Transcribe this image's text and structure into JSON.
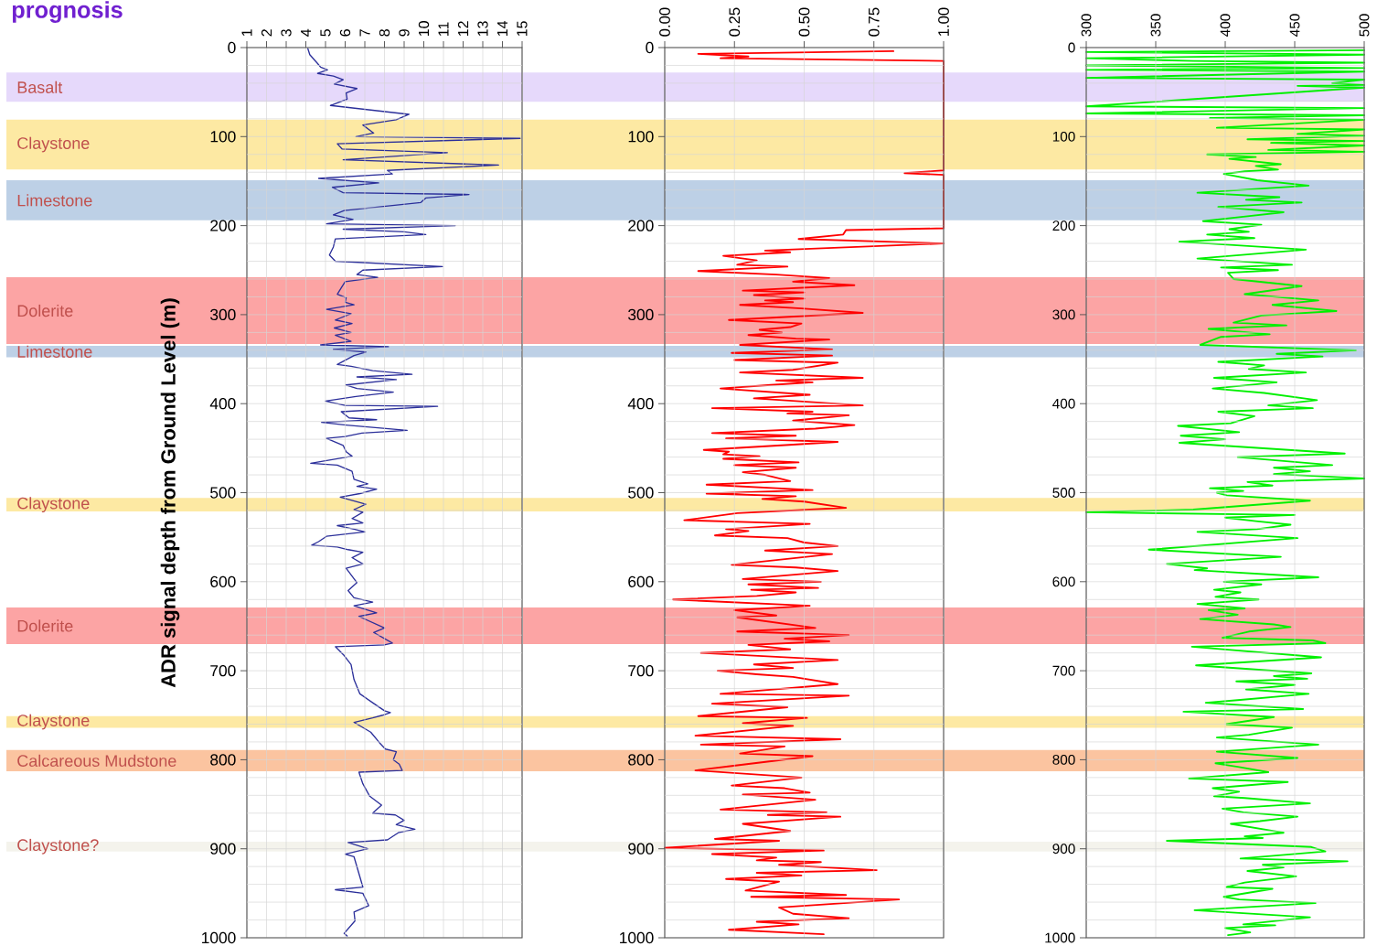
{
  "chart_data": [
    {
      "type": "line",
      "title": "prognosis",
      "ylabel": "ADR signal depth from Ground Level (m)",
      "grid": true,
      "xlim": [
        1,
        15
      ],
      "xticks": [
        1,
        2,
        3,
        4,
        5,
        6,
        7,
        8,
        9,
        10,
        11,
        12,
        13,
        14,
        15
      ],
      "ylim": [
        1000,
        0
      ],
      "yticks": [
        0,
        {
          "value": 20,
          "label": null
        },
        {
          "value": 40,
          "label": null
        },
        {
          "value": 60,
          "label": null
        },
        {
          "value": 80,
          "label": null
        },
        100,
        {
          "value": 120,
          "label": null
        },
        {
          "value": 140,
          "label": null
        },
        {
          "value": 160,
          "label": null
        },
        {
          "value": 180,
          "label": null
        },
        200,
        {
          "value": 220,
          "label": null
        },
        {
          "value": 240,
          "label": null
        },
        {
          "value": 260,
          "label": null
        },
        {
          "value": 280,
          "label": null
        },
        300,
        {
          "value": 320,
          "label": null
        },
        {
          "value": 340,
          "label": null
        },
        {
          "value": 360,
          "label": null
        },
        {
          "value": 380,
          "label": null
        },
        400,
        {
          "value": 420,
          "label": null
        },
        {
          "value": 440,
          "label": null
        },
        {
          "value": 460,
          "label": null
        },
        {
          "value": 480,
          "label": null
        },
        500,
        {
          "value": 520,
          "label": null
        },
        {
          "value": 540,
          "label": null
        },
        {
          "value": 560,
          "label": null
        },
        {
          "value": 580,
          "label": null
        },
        600,
        {
          "value": 620,
          "label": null
        },
        {
          "value": 640,
          "label": null
        },
        {
          "value": 660,
          "label": null
        },
        {
          "value": 680,
          "label": null
        },
        700,
        {
          "value": 720,
          "label": null
        },
        {
          "value": 740,
          "label": null
        },
        {
          "value": 760,
          "label": null
        },
        {
          "value": 780,
          "label": null
        },
        800,
        {
          "value": 820,
          "label": null
        },
        {
          "value": 840,
          "label": null
        },
        {
          "value": 860,
          "label": null
        },
        {
          "value": 880,
          "label": null
        },
        900,
        {
          "value": 920,
          "label": null
        },
        {
          "value": 940,
          "label": null
        },
        {
          "value": 960,
          "label": null
        },
        {
          "value": 980,
          "label": null
        },
        1000
      ],
      "bands": [
        {
          "axis": "y",
          "from": 28,
          "to": 61,
          "label": "Basalt",
          "color": "#e6d9fb"
        },
        {
          "axis": "y",
          "from": 81,
          "to": 137,
          "label": "Claystone",
          "color": "#fde9a3"
        },
        {
          "axis": "y",
          "from": 149,
          "to": 194,
          "label": "Limestone",
          "color": "#bdd0e6"
        },
        {
          "axis": "y",
          "from": 258,
          "to": 333,
          "label": "Dolerite",
          "color": "#fca4a4"
        },
        {
          "axis": "y",
          "from": 335,
          "to": 348,
          "label": "Limestone",
          "color": "#bdd0e6"
        },
        {
          "axis": "y",
          "from": 506,
          "to": 521,
          "label": "Claystone",
          "color": "#fde9a3"
        },
        {
          "axis": "y",
          "from": 629,
          "to": 670,
          "label": "Dolerite",
          "color": "#fca4a4"
        },
        {
          "axis": "y",
          "from": 751,
          "to": 764,
          "label": "Claystone",
          "color": "#fde9a3"
        },
        {
          "axis": "y",
          "from": 789,
          "to": 813,
          "label": "Calcareous Mudstone",
          "color": "#fbc4a0"
        },
        {
          "axis": "y",
          "from": 892,
          "to": 903,
          "label": "Claystone?",
          "color": "#f4f3ec"
        }
      ],
      "series": [
        {
          "color": "#2b2f9a",
          "x": [
            4.1,
            4.2,
            4.6,
            4.75,
            5.1,
            4.6,
            5.4,
            5.9,
            5.45,
            6.6,
            6.05,
            6.1,
            5.25,
            9.25,
            8.6,
            6.9,
            7.45,
            6.55,
            14.9,
            5.6,
            5.85,
            11.2,
            5.9,
            13.8,
            8.15,
            8.4,
            4.65,
            7.7,
            5.35,
            5.9,
            12.3,
            10.1,
            9.85,
            5.95,
            5.4,
            6.4,
            5.05,
            11.6,
            5.9,
            9.0,
            10.1,
            5.5,
            5.4,
            5.2,
            5.5,
            10.95,
            6.9,
            6.6,
            7.65,
            6.0,
            5.8,
            5.6,
            6.05,
            6.0,
            6.45,
            5.05,
            6.3,
            5.5,
            6.35,
            5.45,
            6.3,
            5.5,
            6.3,
            4.75,
            8.2,
            5.4,
            7.05,
            6.45,
            5.6,
            6.3,
            7.4,
            9.4,
            6.6,
            8.6,
            6.05,
            6.6,
            8.45,
            6.55,
            5.0,
            6.0,
            10.7,
            5.8,
            6.2,
            7.6,
            4.8,
            6.05,
            9.15,
            6.85,
            6.0,
            5.05,
            5.9,
            6.05,
            6.35,
            4.25,
            5.6,
            6.35,
            6.45,
            7.15,
            6.6,
            7.6,
            6.75,
            5.75,
            7.05,
            6.45,
            6.9,
            6.35,
            6.9,
            5.6,
            6.45,
            7.0,
            5.05,
            4.65,
            4.3,
            5.6,
            6.15,
            6.9,
            6.35,
            6.9,
            6.05,
            6.6,
            6.15,
            6.45,
            7.4,
            6.45,
            7.6,
            6.7,
            8.0,
            7.45,
            8.4,
            8.0,
            5.5,
            5.95,
            6.3,
            6.45,
            6.75,
            7.4,
            8.0,
            8.3,
            7.9,
            7.4,
            6.45,
            7.3,
            7.75,
            8.05,
            8.6,
            8.45,
            8.75,
            8.9,
            6.7,
            6.9,
            7.25,
            7.85,
            7.4,
            8.55,
            9.0,
            8.6,
            9.55,
            8.7,
            8.15,
            6.15,
            7.15,
            6.0,
            6.45,
            6.9,
            5.5,
            6.9,
            7.2,
            6.45,
            6.5,
            5.95,
            6.1
          ],
          "values": [
            1,
            8,
            18,
            22,
            25,
            29,
            32,
            36,
            41,
            46,
            51,
            58,
            65,
            75,
            81,
            87,
            96,
            100,
            102,
            108,
            114,
            118,
            126,
            132,
            138,
            142,
            147,
            152,
            157,
            163,
            165,
            169,
            174,
            183,
            188,
            193,
            198,
            200,
            204,
            207,
            210,
            215,
            224,
            233,
            240,
            246,
            250,
            255,
            258,
            263,
            270,
            277,
            281,
            286,
            289,
            294,
            299,
            306,
            310,
            315,
            320,
            323,
            330,
            334,
            336,
            339,
            342,
            346,
            356,
            358,
            363,
            367,
            370,
            373,
            379,
            383,
            387,
            392,
            397,
            402,
            403,
            409,
            416,
            418,
            421,
            424,
            430,
            433,
            437,
            439,
            447,
            454,
            459,
            467,
            469,
            476,
            485,
            490,
            493,
            496,
            501,
            505,
            513,
            519,
            522,
            529,
            534,
            537,
            541,
            544,
            549,
            555,
            559,
            561,
            564,
            567,
            573,
            580,
            585,
            601,
            610,
            618,
            623,
            627,
            635,
            639,
            652,
            657,
            669,
            671,
            673,
            683,
            693,
            710,
            726,
            736,
            745,
            747,
            750,
            753,
            758,
            769,
            781,
            788,
            791,
            800,
            805,
            812,
            814,
            827,
            841,
            851,
            860,
            862,
            868,
            873,
            878,
            882,
            890,
            893,
            900,
            906,
            909,
            943,
            946,
            950,
            964,
            971,
            981,
            995,
            998
          ]
        }
      ]
    },
    {
      "type": "line",
      "grid": true,
      "xlim": [
        0,
        1
      ],
      "xticks": [
        {
          "value": 0,
          "label": "0.00"
        },
        {
          "value": 0.25,
          "label": "0.25"
        },
        {
          "value": 0.5,
          "label": "0.50"
        },
        {
          "value": 0.75,
          "label": "0.75"
        },
        {
          "value": 1,
          "label": "1.00"
        }
      ],
      "ylim": [
        1000,
        0
      ],
      "yticks": [
        0,
        {
          "value": 20,
          "label": null
        },
        {
          "value": 40,
          "label": null
        },
        {
          "value": 60,
          "label": null
        },
        {
          "value": 80,
          "label": null
        },
        100,
        {
          "value": 120,
          "label": null
        },
        {
          "value": 140,
          "label": null
        },
        {
          "value": 160,
          "label": null
        },
        {
          "value": 180,
          "label": null
        },
        200,
        {
          "value": 220,
          "label": null
        },
        {
          "value": 240,
          "label": null
        },
        {
          "value": 260,
          "label": null
        },
        {
          "value": 280,
          "label": null
        },
        300,
        {
          "value": 320,
          "label": null
        },
        {
          "value": 340,
          "label": null
        },
        {
          "value": 360,
          "label": null
        },
        {
          "value": 380,
          "label": null
        },
        400,
        {
          "value": 420,
          "label": null
        },
        {
          "value": 440,
          "label": null
        },
        {
          "value": 460,
          "label": null
        },
        {
          "value": 480,
          "label": null
        },
        500,
        {
          "value": 520,
          "label": null
        },
        {
          "value": 540,
          "label": null
        },
        {
          "value": 560,
          "label": null
        },
        {
          "value": 580,
          "label": null
        },
        600,
        {
          "value": 620,
          "label": null
        },
        {
          "value": 640,
          "label": null
        },
        {
          "value": 660,
          "label": null
        },
        {
          "value": 680,
          "label": null
        },
        700,
        {
          "value": 720,
          "label": null
        },
        {
          "value": 740,
          "label": null
        },
        {
          "value": 760,
          "label": null
        },
        {
          "value": 780,
          "label": null
        },
        800,
        {
          "value": 820,
          "label": null
        },
        {
          "value": 840,
          "label": null
        },
        {
          "value": 860,
          "label": null
        },
        {
          "value": 880,
          "label": null
        },
        900,
        {
          "value": 920,
          "label": null
        },
        {
          "value": 940,
          "label": null
        },
        {
          "value": 960,
          "label": null
        },
        {
          "value": 980,
          "label": null
        },
        1000
      ],
      "bands": [
        {
          "axis": "y",
          "from": 28,
          "to": 61,
          "color": "#e6d9fb"
        },
        {
          "axis": "y",
          "from": 81,
          "to": 137,
          "color": "#fde9a3"
        },
        {
          "axis": "y",
          "from": 149,
          "to": 194,
          "color": "#bdd0e6"
        },
        {
          "axis": "y",
          "from": 258,
          "to": 333,
          "color": "#fca4a4"
        },
        {
          "axis": "y",
          "from": 335,
          "to": 348,
          "color": "#bdd0e6"
        },
        {
          "axis": "y",
          "from": 506,
          "to": 521,
          "color": "#fde9a3"
        },
        {
          "axis": "y",
          "from": 629,
          "to": 670,
          "color": "#fca4a4"
        },
        {
          "axis": "y",
          "from": 751,
          "to": 764,
          "color": "#fde9a3"
        },
        {
          "axis": "y",
          "from": 789,
          "to": 813,
          "color": "#fbc4a0"
        },
        {
          "axis": "y",
          "from": 892,
          "to": 903,
          "color": "#f4f3ec"
        }
      ],
      "series": [
        {
          "color": "#ff0000",
          "x": [
            0.82,
            0.12,
            0.3,
            0.2,
            1,
            1,
            0.86,
            1,
            1,
            0.65,
            0.64,
            0.48,
            1,
            0.36,
            0.45,
            0.21,
            0.33,
            0.26,
            0.44,
            0.12,
            0.4,
            0.5,
            0.59,
            0.46,
            0.68,
            0.28,
            0.5,
            0.32,
            0.5,
            0.36,
            0.46,
            0.27,
            0.49,
            0.71,
            0.23,
            0.49,
            0.45,
            0.34,
            0.42,
            0.3,
            0.47,
            0.59,
            0.27,
            0.6,
            0.24,
            0.6,
            0.25,
            0.62,
            0.46,
            0.27,
            0.71,
            0.4,
            0.53,
            0.38,
            0.2,
            0.52,
            0.32,
            0.71,
            0.17,
            0.53,
            0.44,
            0.66,
            0.46,
            0.68,
            0.54,
            0.17,
            0.47,
            0.22,
            0.62,
            0.46,
            0.14,
            0.23,
            0.21,
            0.34,
            0.21,
            0.48,
            0.25,
            0.47,
            0.28,
            0.36,
            0.45,
            0.15,
            0.53,
            0.15,
            0.47,
            0.35,
            0.5,
            0.65,
            0.26,
            0.07,
            0.52,
            0.22,
            0.3,
            0.18,
            0.44,
            0.5,
            0.62,
            0.36,
            0.6,
            0.24,
            0.47,
            0.62,
            0.28,
            0.56,
            0.3,
            0.55,
            0.31,
            0.47,
            0.33,
            0.03,
            0.52,
            0.25,
            0.4,
            0.26,
            0.54,
            0.26,
            0.66,
            0.43,
            0.59,
            0.3,
            0.45,
            0.13,
            0.62,
            0.32,
            0.46,
            0.19,
            0.33,
            0.46,
            0.62,
            0.2,
            0.66,
            0.17,
            0.44,
            0.12,
            0.51,
            0.28,
            0.46,
            0.11,
            0.63,
            0.13,
            0.43,
            0.27,
            0.53,
            0.24,
            0.11,
            0.49,
            0.24,
            0.43,
            0.52,
            0.28,
            0.54,
            0.2,
            0.58,
            0.37,
            0.63,
            0.28,
            0.45,
            0.18,
            0.41,
            0,
            0.57,
            0.17,
            0.4,
            0.33,
            0.56,
            0.41,
            0.76,
            0.33,
            0.49,
            0.22,
            0.41,
            0.29,
            0.65,
            0.31,
            0.84,
            0.41,
            0.46,
            0.66,
            0.33,
            0.48,
            0.23,
            0.57
          ],
          "values": [
            4,
            7,
            10,
            12,
            15,
            138,
            141,
            143,
            203,
            205,
            210,
            215,
            220,
            228,
            230,
            234,
            239,
            244,
            246,
            251,
            255,
            257,
            259,
            263,
            267,
            273,
            275,
            278,
            282,
            284,
            286,
            289,
            293,
            298,
            306,
            310,
            314,
            317,
            320,
            323,
            327,
            328,
            334,
            339,
            343,
            346,
            351,
            354,
            362,
            365,
            371,
            374,
            376,
            379,
            383,
            390,
            394,
            402,
            405,
            409,
            411,
            413,
            419,
            424,
            428,
            433,
            436,
            439,
            443,
            446,
            452,
            454,
            457,
            459,
            462,
            466,
            469,
            472,
            477,
            480,
            487,
            491,
            497,
            501,
            504,
            507,
            510,
            517,
            523,
            531,
            535,
            541,
            543,
            548,
            551,
            556,
            560,
            565,
            569,
            581,
            584,
            588,
            597,
            600,
            603,
            607,
            609,
            612,
            616,
            620,
            627,
            632,
            638,
            640,
            652,
            656,
            660,
            664,
            667,
            671,
            676,
            680,
            688,
            693,
            697,
            700,
            704,
            707,
            715,
            726,
            728,
            737,
            741,
            751,
            753,
            759,
            762,
            773,
            777,
            783,
            785,
            793,
            796,
            807,
            812,
            820,
            829,
            832,
            837,
            839,
            845,
            856,
            859,
            862,
            864,
            872,
            880,
            889,
            891,
            899,
            902,
            906,
            910,
            913,
            915,
            918,
            924,
            927,
            930,
            934,
            937,
            947,
            952,
            954,
            957,
            966,
            973,
            978,
            982,
            985,
            991,
            996
          ]
        }
      ]
    },
    {
      "type": "line",
      "grid": true,
      "xlim": [
        300,
        500
      ],
      "xticks": [
        300,
        350,
        400,
        450,
        500
      ],
      "ylim": [
        1000,
        0
      ],
      "yticks": [
        0,
        {
          "value": 20,
          "label": null
        },
        {
          "value": 40,
          "label": null
        },
        {
          "value": 60,
          "label": null
        },
        {
          "value": 80,
          "label": null
        },
        100,
        {
          "value": 120,
          "label": null
        },
        {
          "value": 140,
          "label": null
        },
        {
          "value": 160,
          "label": null
        },
        {
          "value": 180,
          "label": null
        },
        200,
        {
          "value": 220,
          "label": null
        },
        {
          "value": 240,
          "label": null
        },
        {
          "value": 260,
          "label": null
        },
        {
          "value": 280,
          "label": null
        },
        300,
        {
          "value": 320,
          "label": null
        },
        {
          "value": 340,
          "label": null
        },
        {
          "value": 360,
          "label": null
        },
        {
          "value": 380,
          "label": null
        },
        400,
        {
          "value": 420,
          "label": null
        },
        {
          "value": 440,
          "label": null
        },
        {
          "value": 460,
          "label": null
        },
        {
          "value": 480,
          "label": null
        },
        500,
        {
          "value": 520,
          "label": null
        },
        {
          "value": 540,
          "label": null
        },
        {
          "value": 560,
          "label": null
        },
        {
          "value": 580,
          "label": null
        },
        600,
        {
          "value": 620,
          "label": null
        },
        {
          "value": 640,
          "label": null
        },
        {
          "value": 660,
          "label": null
        },
        {
          "value": 680,
          "label": null
        },
        700,
        {
          "value": 720,
          "label": null
        },
        {
          "value": 740,
          "label": null
        },
        {
          "value": 760,
          "label": null
        },
        {
          "value": 780,
          "label": null
        },
        800,
        {
          "value": 820,
          "label": null
        },
        {
          "value": 840,
          "label": null
        },
        {
          "value": 860,
          "label": null
        },
        {
          "value": 880,
          "label": null
        },
        900,
        {
          "value": 920,
          "label": null
        },
        {
          "value": 940,
          "label": null
        },
        {
          "value": 960,
          "label": null
        },
        {
          "value": 980,
          "label": null
        },
        1000
      ],
      "bands": [
        {
          "axis": "y",
          "from": 28,
          "to": 61,
          "color": "#e6d9fb"
        },
        {
          "axis": "y",
          "from": 81,
          "to": 137,
          "color": "#fde9a3"
        },
        {
          "axis": "y",
          "from": 149,
          "to": 194,
          "color": "#bdd0e6"
        },
        {
          "axis": "y",
          "from": 258,
          "to": 333,
          "color": "#fca4a4"
        },
        {
          "axis": "y",
          "from": 335,
          "to": 348,
          "color": "#bdd0e6"
        },
        {
          "axis": "y",
          "from": 506,
          "to": 521,
          "color": "#fde9a3"
        },
        {
          "axis": "y",
          "from": 629,
          "to": 670,
          "color": "#fca4a4"
        },
        {
          "axis": "y",
          "from": 751,
          "to": 764,
          "color": "#fde9a3"
        },
        {
          "axis": "y",
          "from": 789,
          "to": 813,
          "color": "#fbc4a0"
        },
        {
          "axis": "y",
          "from": 892,
          "to": 903,
          "color": "#f4f3ec"
        }
      ],
      "series": [
        {
          "color": "#00f000",
          "x": [
            500,
            300,
            500,
            300,
            377,
            500,
            300,
            500,
            300,
            500,
            300,
            500,
            477,
            500,
            452,
            500,
            300,
            500,
            300,
            500,
            389,
            500,
            394,
            500,
            452,
            500,
            416,
            500,
            433,
            500,
            431,
            500,
            387,
            422,
            403,
            440,
            422,
            438,
            414,
            399,
            423,
            460,
            380,
            439,
            415,
            455,
            395,
            442,
            413,
            384,
            426,
            403,
            417,
            387,
            421,
            367,
            458,
            380,
            448,
            397,
            438,
            402,
            406,
            455,
            414,
            467,
            434,
            480,
            426,
            406,
            444,
            388,
            432,
            397,
            382,
            494,
            437,
            470,
            395,
            428,
            417,
            458,
            392,
            437,
            391,
            428,
            466,
            431,
            463,
            395,
            421,
            404,
            366,
            410,
            368,
            400,
            367,
            486,
            409,
            477,
            435,
            461,
            435,
            500,
            416,
            434,
            389,
            413,
            394,
            401,
            461,
            377,
            300,
            450,
            400,
            422,
            447,
            423,
            380,
            452,
            345,
            440,
            358,
            387,
            378,
            467,
            399,
            426,
            392,
            411,
            393,
            424,
            380,
            414,
            388,
            409,
            382,
            435,
            447,
            417,
            398,
            463,
            472,
            376,
            469,
            379,
            462,
            435,
            459,
            408,
            450,
            415,
            460,
            409,
            386,
            456,
            370,
            435,
            401,
            448,
            417,
            394,
            467,
            394,
            452,
            393,
            409,
            431,
            374,
            445,
            391,
            410,
            392,
            414,
            461,
            398,
            413,
            452,
            425,
            404,
            442,
            414,
            427,
            358,
            462,
            472,
            411,
            488,
            427,
            442,
            416,
            451,
            414,
            401,
            434,
            399,
            410,
            465,
            378,
            461,
            413,
            436,
            400,
            418,
            402
          ],
          "values": [
            3,
            5,
            8,
            12,
            15,
            17,
            20,
            23,
            25,
            27,
            34,
            36,
            40,
            42,
            43,
            45,
            66,
            68,
            74,
            76,
            79,
            81,
            90,
            92,
            97,
            99,
            103,
            105,
            107,
            110,
            115,
            117,
            120,
            123,
            125,
            131,
            133,
            137,
            139,
            142,
            149,
            155,
            163,
            168,
            171,
            174,
            179,
            185,
            190,
            195,
            199,
            204,
            207,
            210,
            214,
            218,
            227,
            237,
            244,
            247,
            250,
            253,
            260,
            268,
            277,
            284,
            289,
            296,
            301,
            309,
            312,
            316,
            322,
            325,
            334,
            340,
            344,
            347,
            353,
            357,
            361,
            365,
            371,
            376,
            383,
            388,
            396,
            402,
            405,
            409,
            414,
            422,
            425,
            432,
            436,
            440,
            444,
            456,
            460,
            469,
            472,
            476,
            479,
            484,
            488,
            492,
            495,
            498,
            500,
            503,
            509,
            519,
            522,
            525,
            528,
            532,
            536,
            541,
            544,
            551,
            564,
            572,
            580,
            585,
            587,
            595,
            600,
            603,
            609,
            612,
            617,
            620,
            625,
            630,
            632,
            637,
            642,
            648,
            651,
            656,
            663,
            666,
            669,
            673,
            685,
            694,
            703,
            706,
            709,
            712,
            716,
            721,
            726,
            733,
            736,
            743,
            746,
            752,
            760,
            764,
            772,
            775,
            783,
            791,
            798,
            804,
            808,
            814,
            821,
            825,
            832,
            836,
            841,
            843,
            849,
            855,
            859,
            864,
            869,
            872,
            882,
            886,
            888,
            891,
            898,
            903,
            911,
            914,
            918,
            921,
            925,
            931,
            938,
            943,
            945,
            954,
            957,
            961,
            969,
            977,
            985,
            986,
            989,
            994,
            997
          ]
        }
      ]
    }
  ]
}
